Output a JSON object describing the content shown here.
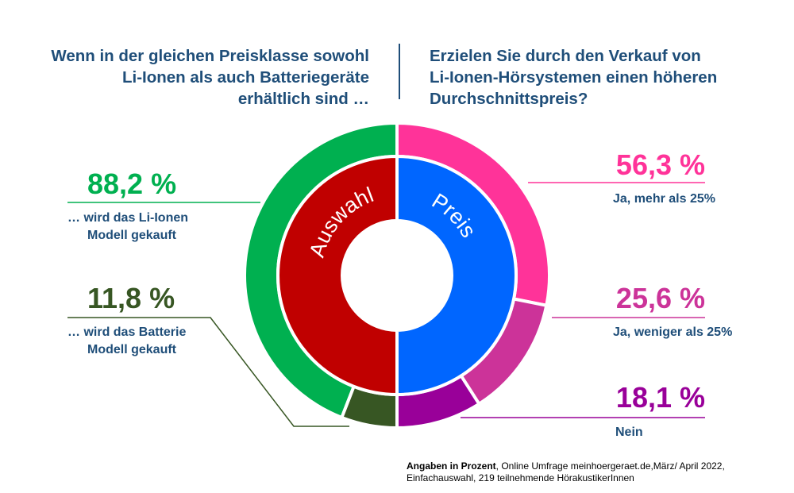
{
  "questions": {
    "left": [
      "Wenn in der gleichen Preisklasse sowohl",
      "Li-Ionen als auch Batteriegeräte",
      "erhältlich sind …"
    ],
    "right": [
      "Erzielen Sie durch den Verkauf von",
      "Li-Ionen-Hörsystemen einen höheren",
      "Durchschnittspreis?"
    ]
  },
  "labels": {
    "li_ionen": {
      "value": "88,2 %",
      "desc": [
        "…  wird das Li-Ionen",
        "Modell gekauft"
      ]
    },
    "batterie": {
      "value": "11,8 %",
      "desc": [
        "…  wird das Batterie",
        "Modell gekauft"
      ]
    },
    "ja_mehr": {
      "value": "56,3 %",
      "desc": "Ja, mehr als 25%"
    },
    "ja_weniger": {
      "value": "25,6 %",
      "desc": "Ja, weniger als 25%"
    },
    "nein": {
      "value": "18,1 %",
      "desc": "Nein"
    }
  },
  "footnote": {
    "bold": "Angaben in Prozent",
    "line1_rest": ", Online Umfrage meinhoergeraet.de,März/ April 2022,",
    "line2": "Einfachauswahl, 219 teilnehmende HörakustikerInnen"
  },
  "colors": {
    "li_ionen": "#00b050",
    "batterie": "#375623",
    "ja_mehr": "#ff3399",
    "ja_weniger": "#cc3399",
    "nein": "#990099",
    "auswahl": "#c00000",
    "preis": "#0066ff",
    "question_text": "#1f4e79"
  },
  "chart_data": [
    {
      "type": "pie",
      "title": "Wenn in der gleichen Preisklasse sowohl Li-Ionen als auch Batteriegeräte erhältlich sind …",
      "inner_label": "Auswahl",
      "unit": "%",
      "categories": [
        "… wird das Li-Ionen Modell gekauft",
        "… wird das Batterie Modell gekauft"
      ],
      "values": [
        88.2,
        11.8
      ]
    },
    {
      "type": "pie",
      "title": "Erzielen Sie durch den Verkauf von Li-Ionen-Hörsystemen einen höheren Durchschnittspreis?",
      "inner_label": "Preis",
      "unit": "%",
      "categories": [
        "Ja, mehr als 25%",
        "Ja, weniger als 25%",
        "Nein"
      ],
      "values": [
        56.3,
        25.6,
        18.1
      ]
    }
  ]
}
